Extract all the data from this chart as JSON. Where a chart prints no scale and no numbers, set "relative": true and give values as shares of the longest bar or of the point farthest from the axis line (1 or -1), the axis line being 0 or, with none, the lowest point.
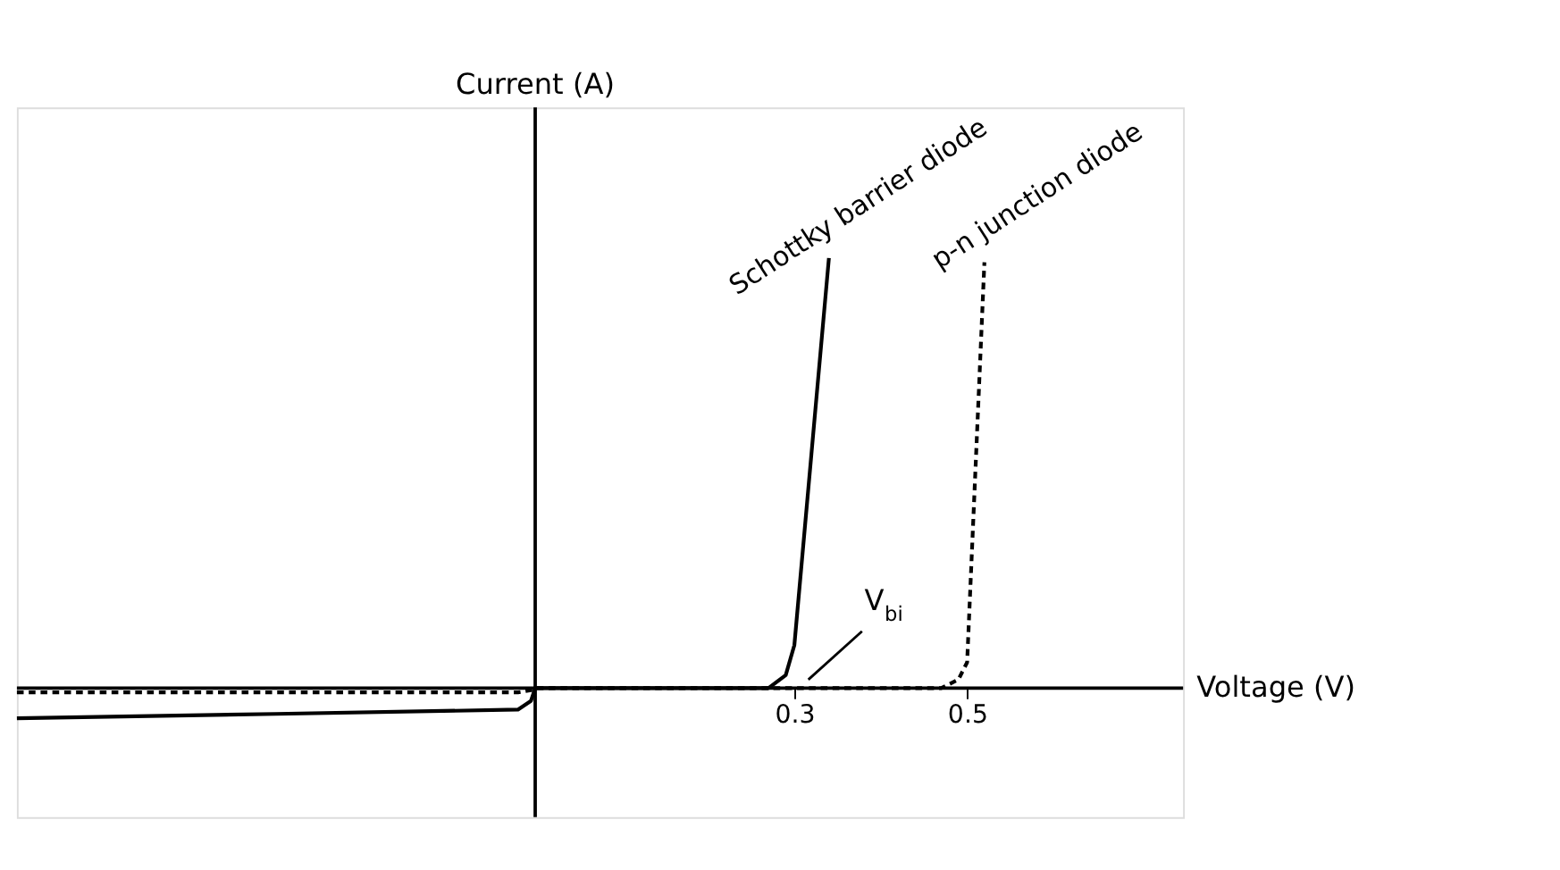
{
  "chart_data": {
    "type": "line",
    "relative": true,
    "xlabel": "Voltage (V)",
    "xlim": [
      -0.6,
      0.75
    ],
    "xticks": [
      0.3,
      0.5
    ],
    "grid": false,
    "marker": "none",
    "series": [
      {
        "name": "Schottky barrier diode",
        "color": "#000000",
        "line_style": "solid",
        "x": [
          -0.6,
          -0.3,
          -0.02,
          -0.005,
          0,
          0.27,
          0.29,
          0.3,
          0.34
        ],
        "values": [
          -0.07,
          -0.06,
          -0.05,
          -0.03,
          0,
          0,
          0.03,
          0.1,
          1
        ]
      },
      {
        "name": "p-n junction diode",
        "color": "#000000",
        "line_style": "dashed",
        "x": [
          -0.6,
          -0.3,
          -0.02,
          -0.005,
          0,
          0.47,
          0.49,
          0.5,
          0.52
        ],
        "values": [
          -0.01,
          -0.01,
          -0.01,
          -0.005,
          0,
          0,
          0.02,
          0.06,
          0.99
        ]
      }
    ],
    "annotations": [
      "Current (A)",
      "V$_{bi}$"
    ]
  }
}
